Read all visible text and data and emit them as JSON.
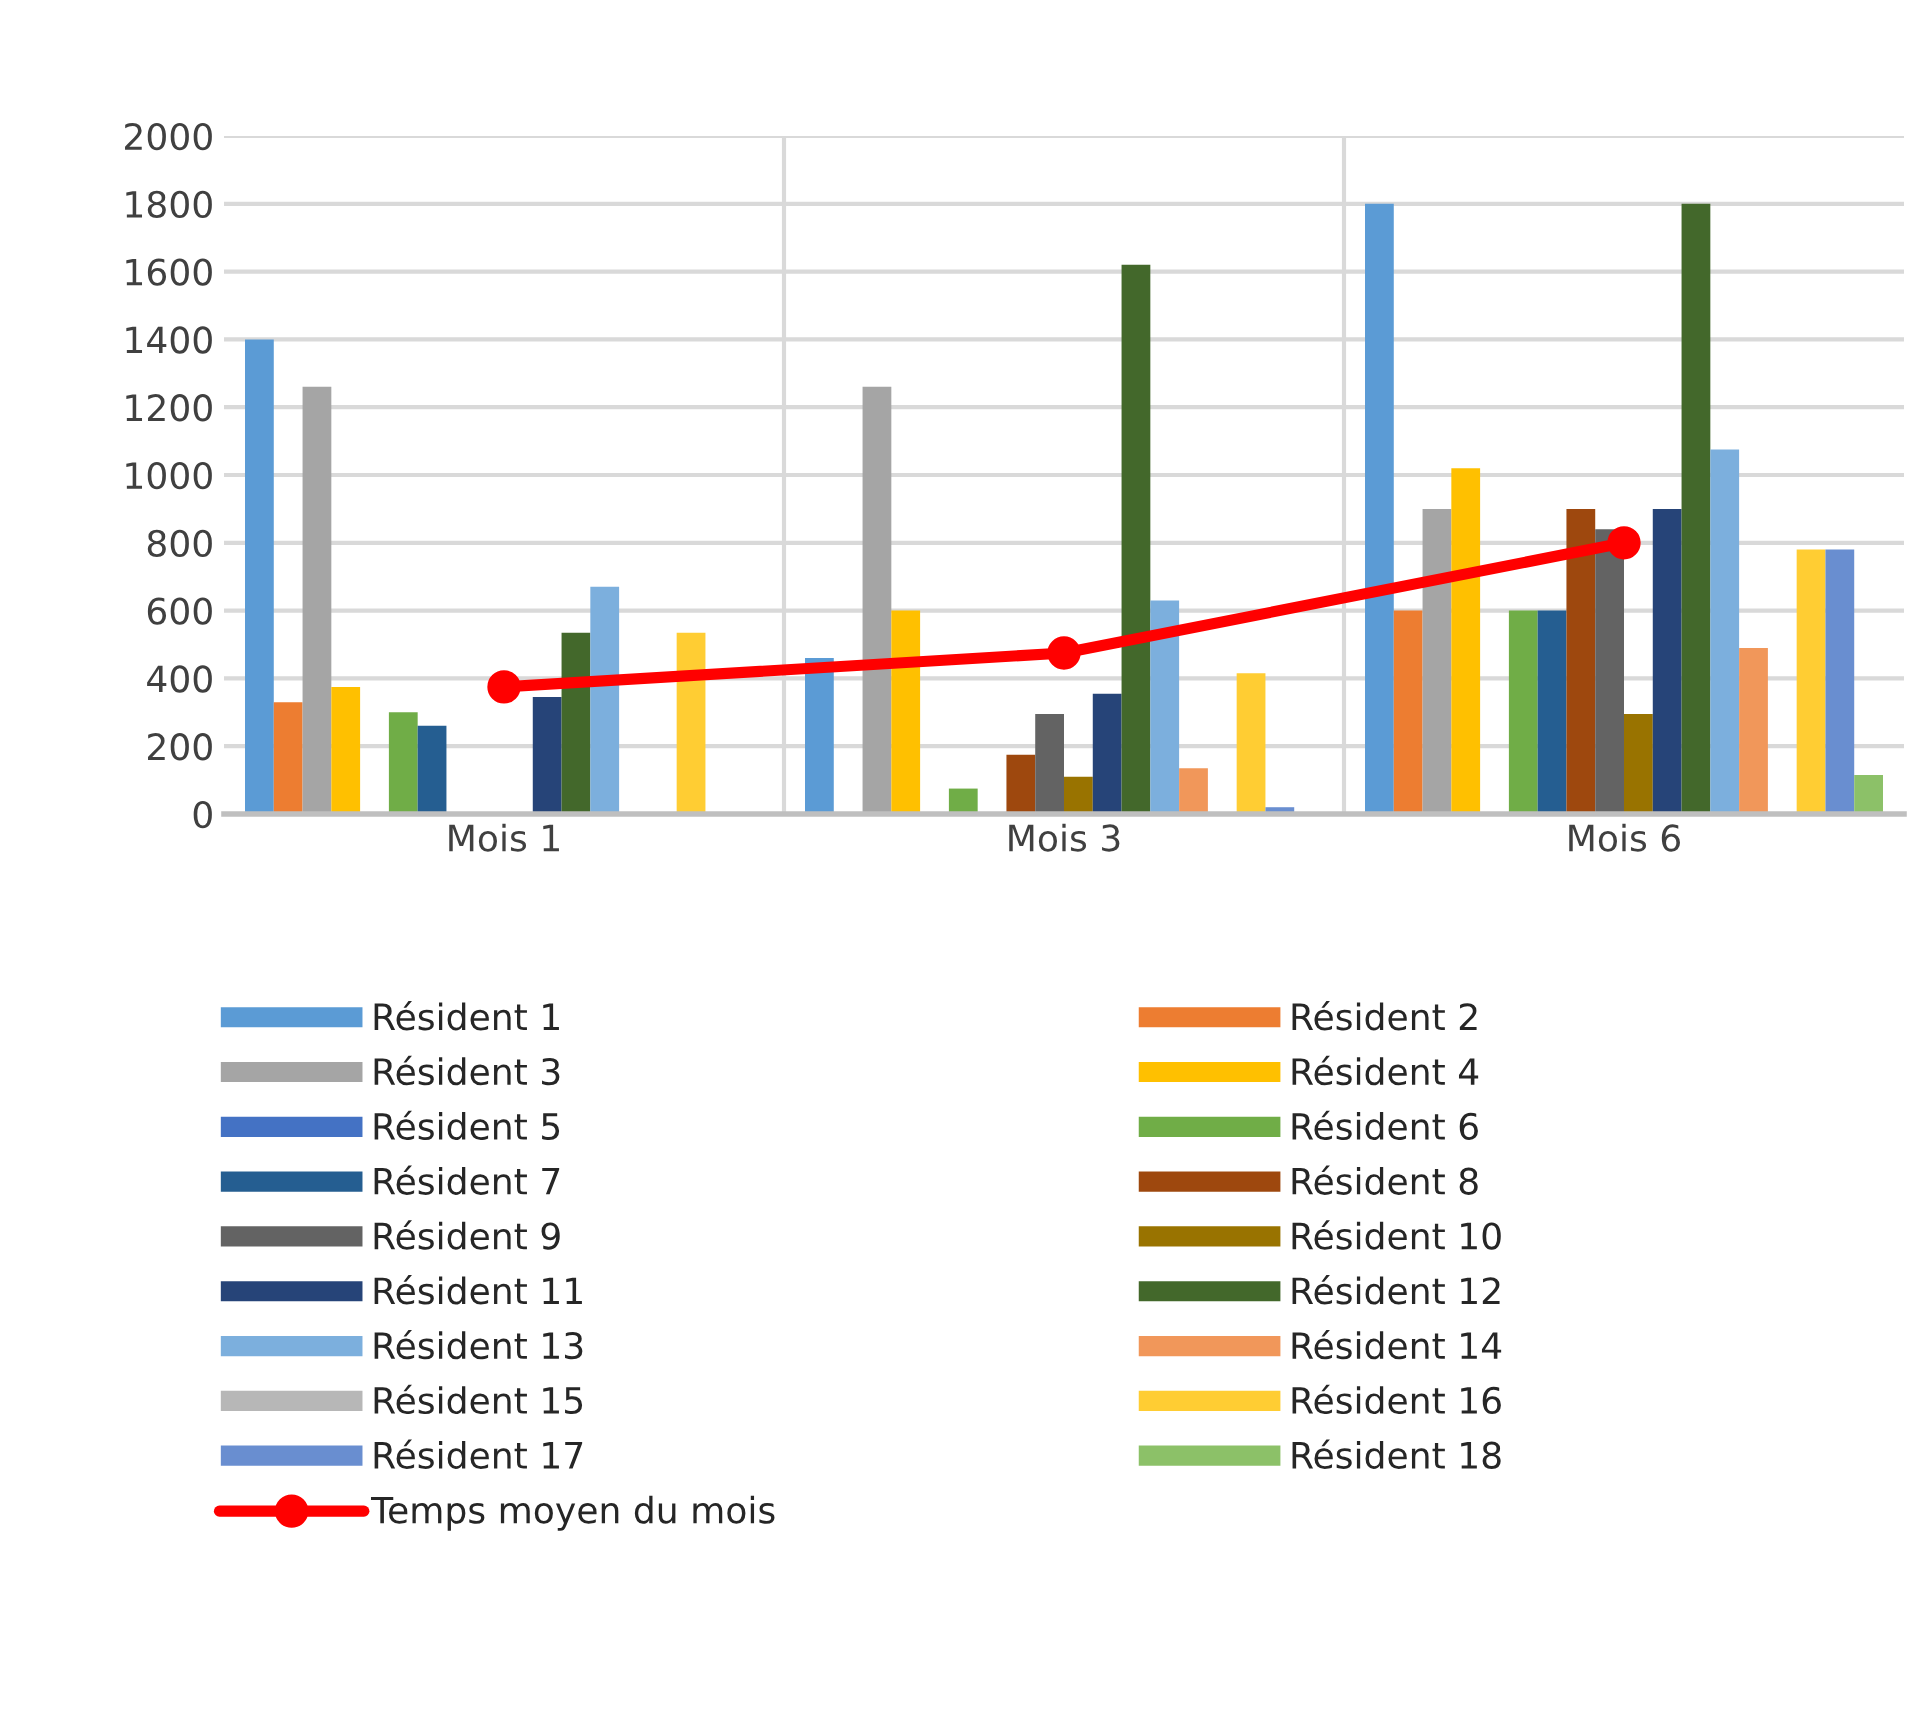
{
  "chart_data": {
    "type": "bar",
    "categories": [
      "Mois 1",
      "Mois 3",
      "Mois 6"
    ],
    "ylim": [
      0,
      2000
    ],
    "yticks": [
      0,
      200,
      400,
      600,
      800,
      1000,
      1200,
      1400,
      1600,
      1800,
      2000
    ],
    "grid": true,
    "legend": "bottom",
    "series": [
      {
        "name": "Résident 1",
        "color": "#5b9bd5",
        "values": [
          1400,
          460,
          1800
        ]
      },
      {
        "name": "Résident 2",
        "color": "#ed7d31",
        "values": [
          330,
          0,
          600
        ]
      },
      {
        "name": "Résident 3",
        "color": "#a5a5a5",
        "values": [
          1260,
          1260,
          900
        ]
      },
      {
        "name": "Résident 4",
        "color": "#ffc000",
        "values": [
          375,
          600,
          1020
        ]
      },
      {
        "name": "Résident 5",
        "color": "#4472c4",
        "values": [
          0,
          0,
          0
        ]
      },
      {
        "name": "Résident 6",
        "color": "#70ad47",
        "values": [
          300,
          75,
          600
        ]
      },
      {
        "name": "Résident 7",
        "color": "#255e91",
        "values": [
          260,
          0,
          600
        ]
      },
      {
        "name": "Résident 8",
        "color": "#9e480e",
        "values": [
          0,
          175,
          900
        ]
      },
      {
        "name": "Résident 9",
        "color": "#636363",
        "values": [
          0,
          295,
          840
        ]
      },
      {
        "name": "Résident 10",
        "color": "#997300",
        "values": [
          0,
          110,
          295
        ]
      },
      {
        "name": "Résident 11",
        "color": "#264478",
        "values": [
          345,
          355,
          900
        ]
      },
      {
        "name": "Résident 12",
        "color": "#43682b",
        "values": [
          535,
          1620,
          1800
        ]
      },
      {
        "name": "Résident 13",
        "color": "#7cafdd",
        "values": [
          670,
          630,
          1075
        ]
      },
      {
        "name": "Résident 14",
        "color": "#f1975a",
        "values": [
          0,
          135,
          490
        ]
      },
      {
        "name": "Résident 15",
        "color": "#b7b7b7",
        "values": [
          0,
          0,
          0
        ]
      },
      {
        "name": "Résident 16",
        "color": "#ffcd33",
        "values": [
          535,
          415,
          780
        ]
      },
      {
        "name": "Résident 17",
        "color": "#698ed0",
        "values": [
          0,
          20,
          780
        ]
      },
      {
        "name": "Résident 18",
        "color": "#8cc168",
        "values": [
          0,
          0,
          115
        ]
      },
      {
        "name": "Temps moyen du mois",
        "type": "line",
        "color": "#ff0000",
        "marker": "circle",
        "line_style": "solid",
        "values": [
          375,
          475,
          800
        ]
      }
    ]
  }
}
